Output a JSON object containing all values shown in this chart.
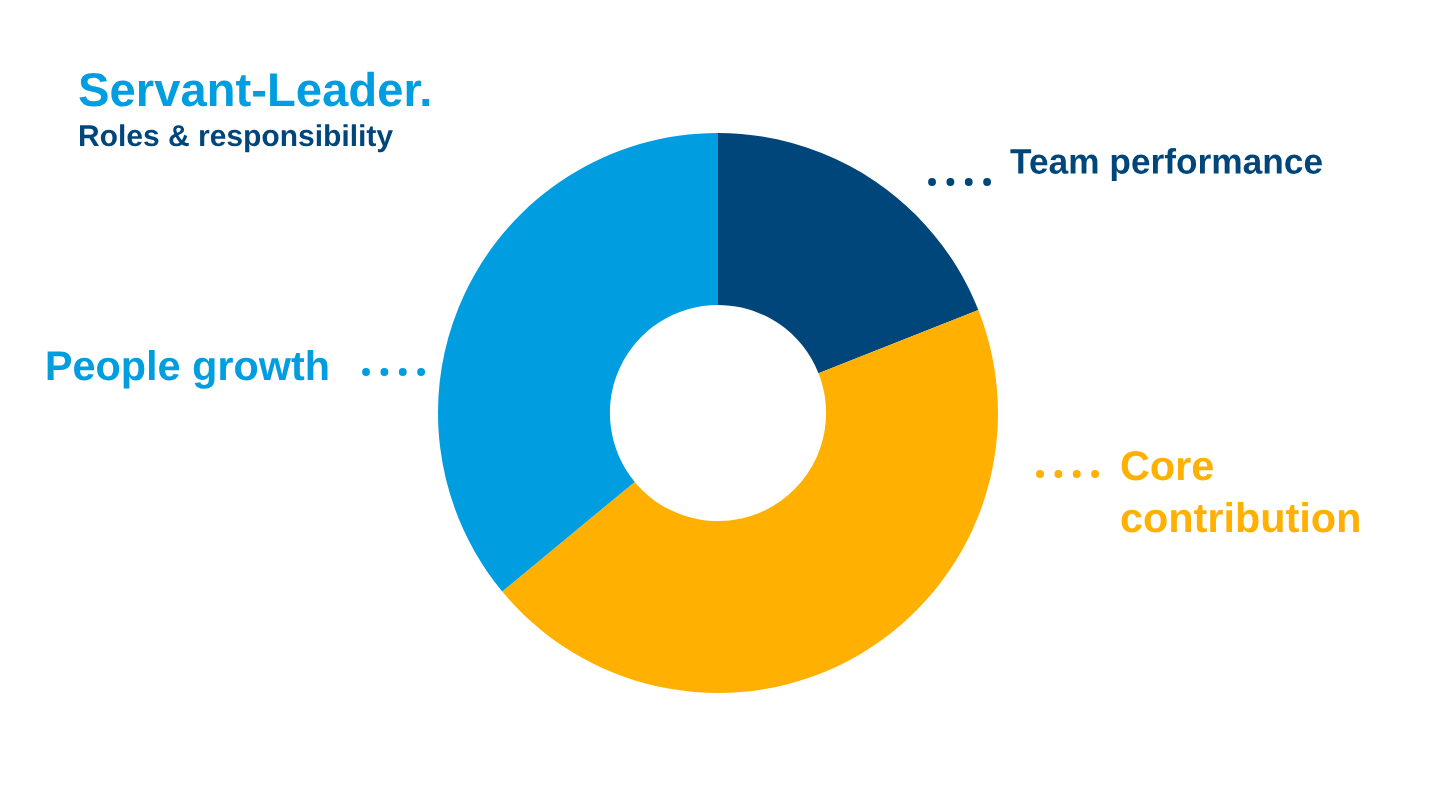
{
  "chart_data": {
    "type": "donut",
    "title": "Servant-Leader.",
    "subtitle": "Roles & responsibility",
    "categories": [
      "Team performance",
      "Core contribution",
      "People growth"
    ],
    "values": [
      19,
      45,
      36
    ],
    "colors": [
      "#00467a",
      "#ffb000",
      "#009ee0"
    ]
  }
}
